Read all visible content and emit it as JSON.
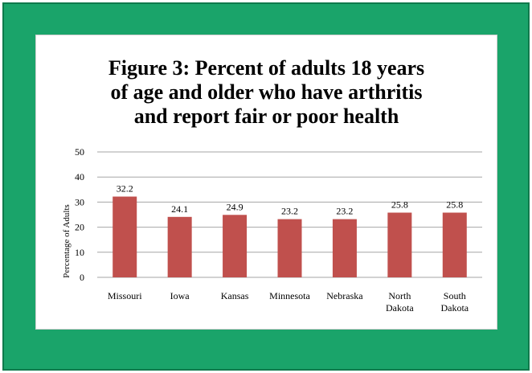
{
  "chart_data": {
    "type": "bar",
    "title": "Figure 3: Percent of  adults 18 years\nof age and older who have arthritis\nand report fair or poor health",
    "xlabel": "",
    "ylabel": "Percentage of Adults",
    "ylim": [
      0,
      50
    ],
    "yticks": [
      0,
      10,
      20,
      30,
      40,
      50
    ],
    "grid": true,
    "legend": "none",
    "categories": [
      "Missouri",
      "Iowa",
      "Kansas",
      "Minnesota",
      "Nebraska",
      "North Dakota",
      "South Dakota"
    ],
    "category_lines": [
      [
        "Missouri"
      ],
      [
        "Iowa"
      ],
      [
        "Kansas"
      ],
      [
        "Minnesota"
      ],
      [
        "Nebraska"
      ],
      [
        "North",
        "Dakota"
      ],
      [
        "South",
        "Dakota"
      ]
    ],
    "values": [
      32.2,
      24.1,
      24.9,
      23.2,
      23.2,
      25.8,
      25.8
    ],
    "data_labels": [
      "32.2",
      "24.1",
      "24.9",
      "23.2",
      "23.2",
      "25.8",
      "25.8"
    ],
    "bar_color": "#c0504d"
  },
  "colors": {
    "background": "#1aa46a",
    "card": "#ffffff",
    "gridline": "#a6a6a6"
  }
}
